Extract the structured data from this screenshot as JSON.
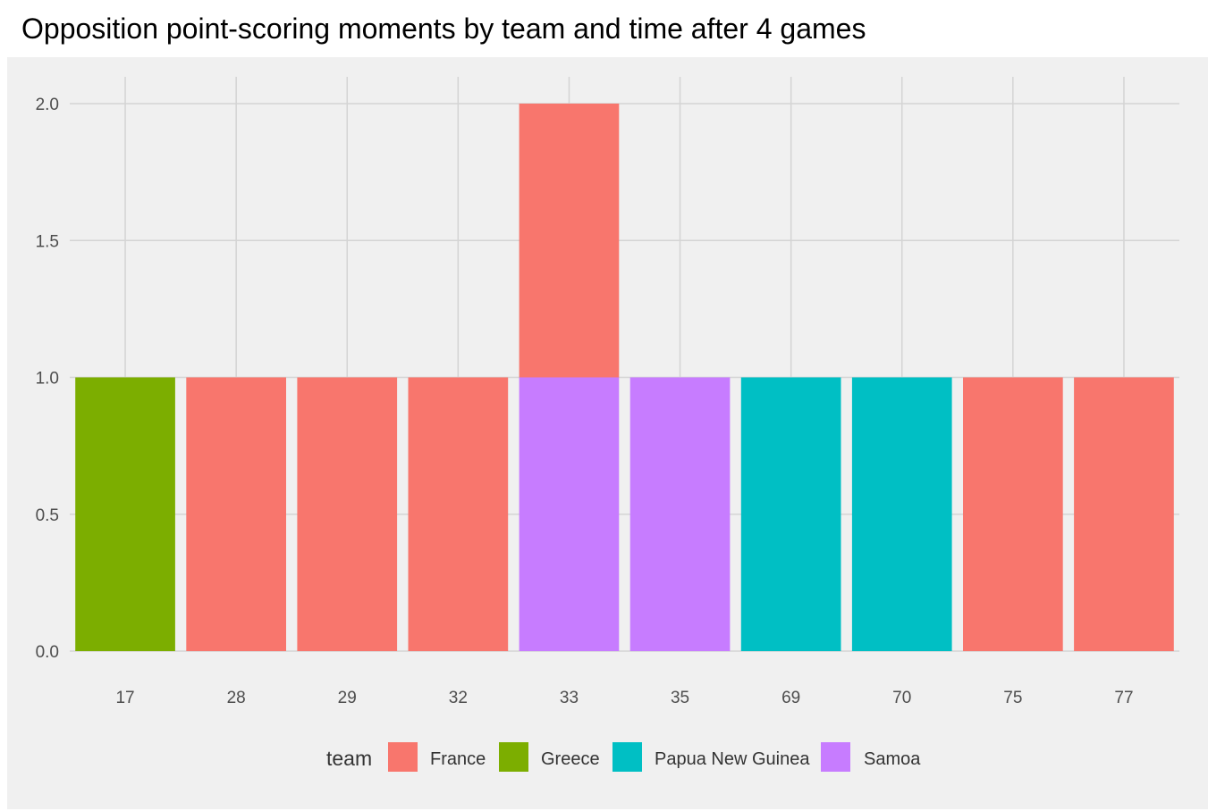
{
  "chart_data": {
    "type": "bar",
    "stacked": true,
    "title": "Opposition point-scoring moments by team and time after 4 games",
    "xlabel": "",
    "ylabel": "",
    "categories": [
      "17",
      "28",
      "29",
      "32",
      "33",
      "35",
      "69",
      "70",
      "75",
      "77"
    ],
    "series": [
      {
        "name": "France",
        "color": "#F8766D",
        "values": [
          0,
          1,
          1,
          1,
          1,
          0,
          0,
          0,
          1,
          1
        ]
      },
      {
        "name": "Greece",
        "color": "#7CAE00",
        "values": [
          1,
          0,
          0,
          0,
          0,
          0,
          0,
          0,
          0,
          0
        ]
      },
      {
        "name": "Papua New Guinea",
        "color": "#00BFC4",
        "values": [
          0,
          0,
          0,
          0,
          0,
          0,
          1,
          1,
          0,
          0
        ]
      },
      {
        "name": "Samoa",
        "color": "#C77CFF",
        "values": [
          0,
          0,
          0,
          0,
          1,
          1,
          0,
          0,
          0,
          0
        ]
      }
    ],
    "stack_order": [
      "Samoa",
      "Papua New Guinea",
      "Greece",
      "France"
    ],
    "ylim": [
      0,
      2
    ],
    "yticks": [
      "0.0",
      "0.5",
      "1.0",
      "1.5",
      "2.0"
    ],
    "grid": true,
    "legend": {
      "title": "team",
      "placement": "bottom"
    },
    "colors": {
      "panel_background": "#F0F0F0",
      "grid": "#D4D4D4"
    }
  }
}
